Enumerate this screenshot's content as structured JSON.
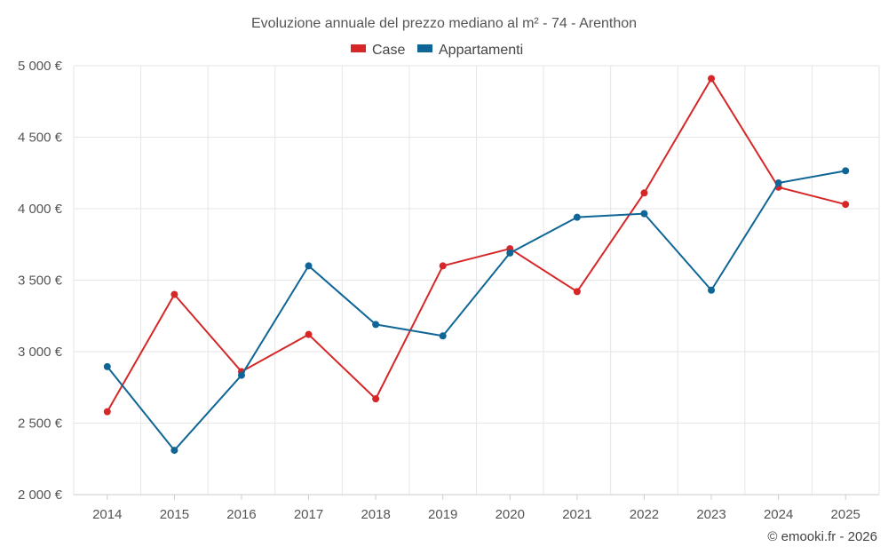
{
  "chart_data": {
    "type": "line",
    "title": "Evoluzione annuale del prezzo mediano al m² - 74 - Arenthon",
    "categories": [
      "2014",
      "2015",
      "2016",
      "2017",
      "2018",
      "2019",
      "2020",
      "2021",
      "2022",
      "2023",
      "2024",
      "2025"
    ],
    "series": [
      {
        "name": "Case",
        "color": "#d62728",
        "values": [
          2580,
          3400,
          2860,
          3120,
          2670,
          3600,
          3720,
          3420,
          4110,
          4910,
          4150,
          4030
        ]
      },
      {
        "name": "Appartamenti",
        "color": "#0f6696",
        "values": [
          2895,
          2310,
          2835,
          3600,
          3190,
          3110,
          3690,
          3940,
          3965,
          3430,
          4180,
          4265
        ]
      }
    ],
    "ylim": [
      2000,
      5000
    ],
    "yticks": [
      2000,
      2500,
      3000,
      3500,
      4000,
      4500,
      5000
    ],
    "ytick_labels": [
      "2 000 €",
      "2 500 €",
      "3 000 €",
      "3 500 €",
      "4 000 €",
      "4 500 €",
      "5 000 €"
    ],
    "xlabel": "",
    "ylabel": "",
    "grid": true,
    "legend_position": "top-center"
  },
  "footer": {
    "credit": "© emooki.fr - 2026"
  }
}
